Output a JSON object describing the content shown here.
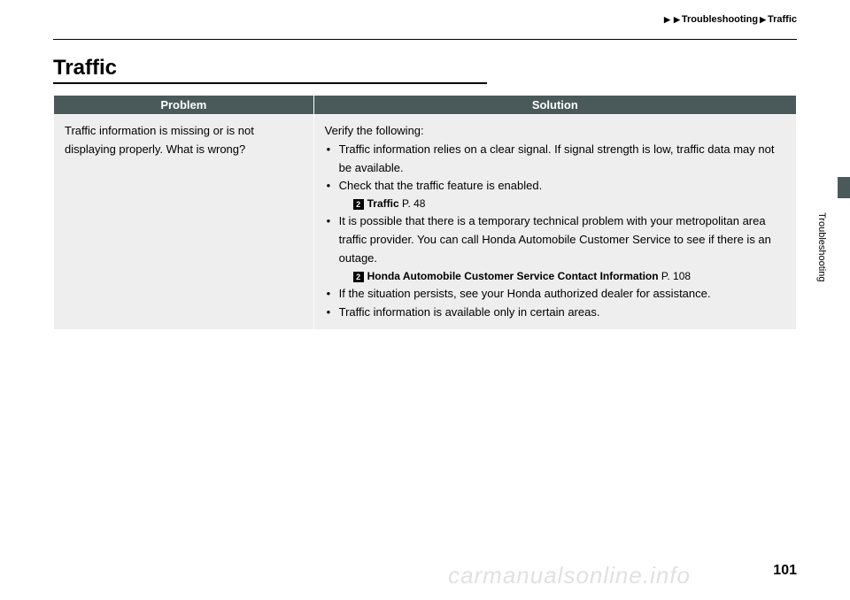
{
  "breadcrumb": {
    "parent": "Troubleshooting",
    "current": "Traffic"
  },
  "section": {
    "title": "Traffic"
  },
  "table": {
    "headers": {
      "problem": "Problem",
      "solution": "Solution"
    },
    "row": {
      "problem": "Traffic information is missing or is not displaying properly. What is wrong?",
      "solution_intro": "Verify the following:",
      "bullets": {
        "b1": "Traffic information relies on a clear signal. If signal strength is low, traffic data may not be available.",
        "b2": "Check that the traffic feature is enabled.",
        "ref1_label": "Traffic",
        "ref1_page": "P. 48",
        "b3": "It is possible that there is a temporary technical problem with your metropolitan area traffic provider. You can call Honda Automobile Customer Service to see if there is an outage.",
        "ref2_label": "Honda Automobile Customer Service Contact Information",
        "ref2_page": "P. 108",
        "b4": "If the situation persists, see your Honda authorized dealer for assistance.",
        "b5": "Traffic information is available only in certain areas."
      }
    }
  },
  "sidebar": {
    "section_name": "Troubleshooting"
  },
  "footer": {
    "page_number": "101",
    "watermark": "carmanualsonline.info"
  },
  "colors": {
    "header_bg": "#4a5a5a",
    "cell_bg": "#eeeeee",
    "text": "#000000"
  }
}
